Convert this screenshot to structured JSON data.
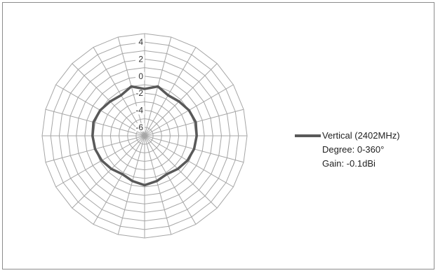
{
  "chart_data": {
    "type": "radar",
    "title": "",
    "radial_ticks": [
      "4",
      "2",
      "0",
      "-2",
      "-4",
      "-6"
    ],
    "rlim": [
      -7,
      5
    ],
    "num_spokes": 24,
    "series": [
      {
        "name": "Vertical (2402MHz)",
        "color": "#595959",
        "values": [
          -1.5,
          -1.0,
          -1.5,
          -1.3,
          -1.0,
          -0.8,
          -0.9,
          -1.0,
          -1.2,
          -1.5,
          -1.8,
          -1.5,
          -1.2,
          -1.5,
          -1.8,
          -1.5,
          -1.2,
          -1.0,
          -0.9,
          -0.8,
          -1.0,
          -1.3,
          -1.5,
          -1.0
        ]
      }
    ],
    "grid": true,
    "legend_position": "right"
  },
  "legend": {
    "series_label": "Vertical (2402MHz)",
    "line2": "Degree: 0-360°",
    "line3": "Gain: -0.1dBi"
  }
}
